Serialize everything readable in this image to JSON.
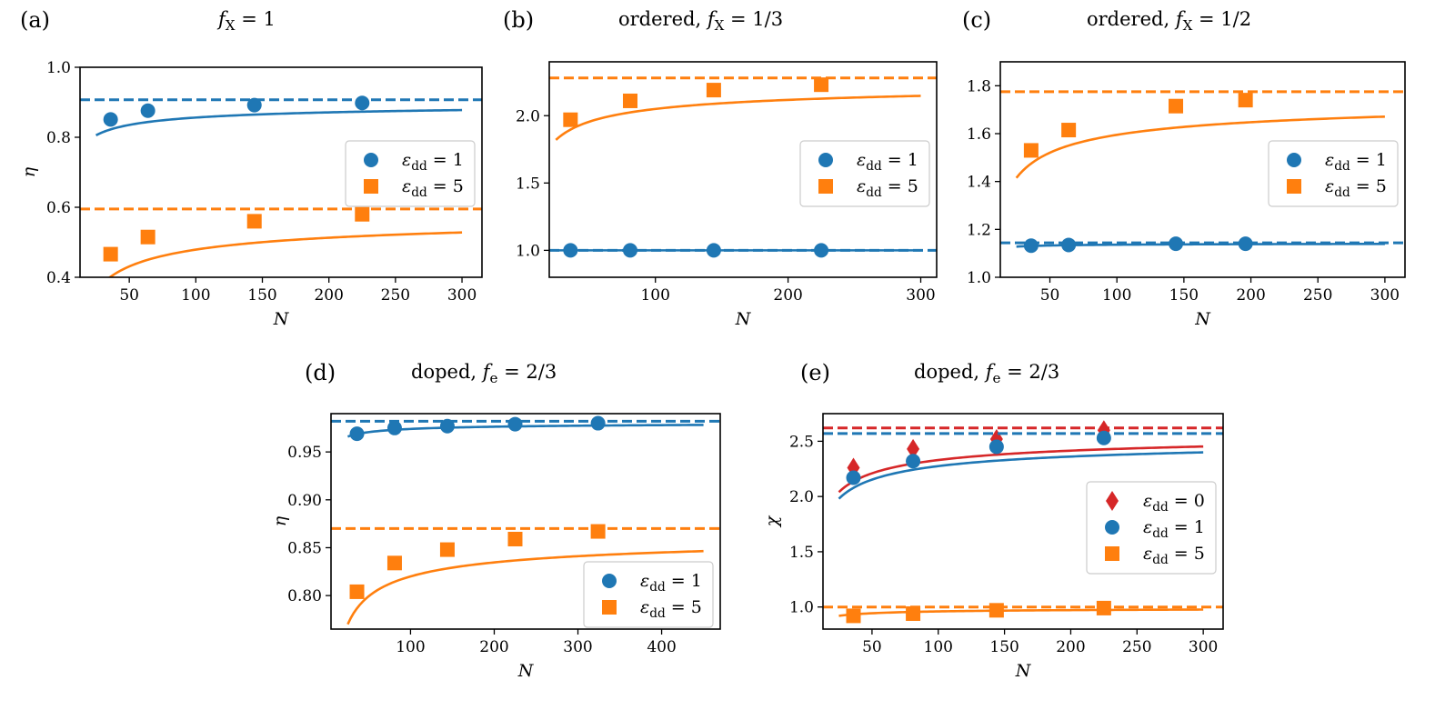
{
  "colors": {
    "blue": "#1f77b4",
    "orange": "#ff7f0e",
    "red": "#d62728"
  },
  "chart_data": [
    {
      "id": "a",
      "type": "line",
      "panel_label": "(a)",
      "title": "f_X = 1",
      "title_parts": [
        [
          "f",
          "i"
        ],
        [
          "X",
          "sub"
        ],
        [
          " = 1",
          "n"
        ]
      ],
      "xlabel": "N",
      "ylabel": "η",
      "xlim": [
        13,
        315
      ],
      "ylim": [
        0.4,
        1.0
      ],
      "xticks": [
        50,
        100,
        150,
        200,
        250,
        300
      ],
      "yticks": [
        0.4,
        0.6,
        0.8,
        1.0
      ],
      "ytick_labels": [
        "0.4",
        "0.6",
        "0.8",
        "1.0"
      ],
      "legend_pos": "center-right",
      "series": [
        {
          "legend": "ε_dd = 1",
          "legend_parts": [
            [
              "ε",
              "i"
            ],
            [
              "dd",
              "sub"
            ],
            [
              " = 1",
              "n"
            ]
          ],
          "color": "blue",
          "marker": "circle",
          "x": [
            36,
            64,
            144,
            225
          ],
          "y": [
            0.851,
            0.876,
            0.892,
            0.898
          ],
          "asymptote": 0.907,
          "fit_x0": 25,
          "fit_x1": 300,
          "fit_A": 0.507
        },
        {
          "legend": "ε_dd = 5",
          "legend_parts": [
            [
              "ε",
              "i"
            ],
            [
              "dd",
              "sub"
            ],
            [
              " = 5",
              "n"
            ]
          ],
          "color": "orange",
          "marker": "square",
          "x": [
            36,
            64,
            144,
            225
          ],
          "y": [
            0.466,
            0.515,
            0.56,
            0.58
          ],
          "asymptote": 0.595,
          "fit_x0": 25,
          "fit_x1": 300,
          "fit_A": 1.16
        }
      ]
    },
    {
      "id": "b",
      "type": "line",
      "panel_label": "(b)",
      "title": "ordered, f_X = 1/3",
      "title_parts": [
        [
          "ordered, ",
          "n"
        ],
        [
          "f",
          "i"
        ],
        [
          "X",
          "sub"
        ],
        [
          " = 1/3",
          "n"
        ]
      ],
      "xlabel": "N",
      "ylabel": "",
      "xlim": [
        20,
        312
      ],
      "ylim": [
        0.8,
        2.4
      ],
      "xticks": [
        100,
        200,
        300
      ],
      "yticks": [
        1.0,
        1.5,
        2.0
      ],
      "ytick_labels": [
        "1.0",
        "1.5",
        "2.0"
      ],
      "legend_pos": "center-right",
      "series": [
        {
          "legend": "ε_dd = 1",
          "legend_parts": [
            [
              "ε",
              "i"
            ],
            [
              "dd",
              "sub"
            ],
            [
              " = 1",
              "n"
            ]
          ],
          "color": "blue",
          "marker": "circle",
          "x": [
            36,
            81,
            144,
            225
          ],
          "y": [
            1.0,
            1.0,
            1.0,
            1.0
          ],
          "asymptote": 1.0,
          "fit_x0": 25,
          "fit_x1": 300,
          "fit_A": 0
        },
        {
          "legend": "ε_dd = 5",
          "legend_parts": [
            [
              "ε",
              "i"
            ],
            [
              "dd",
              "sub"
            ],
            [
              " = 5",
              "n"
            ]
          ],
          "color": "orange",
          "marker": "square",
          "x": [
            36,
            81,
            144,
            225
          ],
          "y": [
            1.97,
            2.11,
            2.19,
            2.23
          ],
          "asymptote": 2.28,
          "fit_x0": 25,
          "fit_x1": 300,
          "fit_A": 2.3
        }
      ]
    },
    {
      "id": "c",
      "type": "line",
      "panel_label": "(c)",
      "title": "ordered, f_X = 1/2",
      "title_parts": [
        [
          "ordered, ",
          "n"
        ],
        [
          "f",
          "i"
        ],
        [
          "X",
          "sub"
        ],
        [
          " = 1/2",
          "n"
        ]
      ],
      "xlabel": "N",
      "ylabel": "",
      "xlim": [
        13,
        315
      ],
      "ylim": [
        1.0,
        1.9
      ],
      "xticks": [
        50,
        100,
        150,
        200,
        250,
        300
      ],
      "yticks": [
        1.0,
        1.2,
        1.4,
        1.6,
        1.8
      ],
      "ytick_labels": [
        "1.0",
        "1.2",
        "1.4",
        "1.6",
        "1.8"
      ],
      "legend_pos": "center-right",
      "series": [
        {
          "legend": "ε_dd = 1",
          "legend_parts": [
            [
              "ε",
              "i"
            ],
            [
              "dd",
              "sub"
            ],
            [
              " = 1",
              "n"
            ]
          ],
          "color": "blue",
          "marker": "circle",
          "x": [
            36,
            64,
            144,
            196
          ],
          "y": [
            1.132,
            1.135,
            1.14,
            1.14
          ],
          "asymptote": 1.144,
          "fit_x0": 25,
          "fit_x1": 300,
          "fit_A": 0.08
        },
        {
          "legend": "ε_dd = 5",
          "legend_parts": [
            [
              "ε",
              "i"
            ],
            [
              "dd",
              "sub"
            ],
            [
              " = 5",
              "n"
            ]
          ],
          "color": "orange",
          "marker": "square",
          "x": [
            36,
            64,
            144,
            196
          ],
          "y": [
            1.53,
            1.615,
            1.715,
            1.74
          ],
          "asymptote": 1.775,
          "fit_x0": 25,
          "fit_x1": 300,
          "fit_A": 1.8
        }
      ]
    },
    {
      "id": "d",
      "type": "line",
      "panel_label": "(d)",
      "title": "doped, f_e = 2/3",
      "title_parts": [
        [
          "doped, ",
          "n"
        ],
        [
          "f",
          "i"
        ],
        [
          "e",
          "sub"
        ],
        [
          " = 2/3",
          "n"
        ]
      ],
      "xlabel": "N",
      "ylabel": "η",
      "xlim": [
        5,
        470
      ],
      "ylim": [
        0.765,
        0.99
      ],
      "xticks": [
        100,
        200,
        300,
        400
      ],
      "yticks": [
        0.8,
        0.85,
        0.9,
        0.95
      ],
      "ytick_labels": [
        "0.80",
        "0.85",
        "0.90",
        "0.95"
      ],
      "legend_pos": "bottom-right",
      "series": [
        {
          "legend": "ε_dd = 1",
          "legend_parts": [
            [
              "ε",
              "i"
            ],
            [
              "dd",
              "sub"
            ],
            [
              " = 1",
              "n"
            ]
          ],
          "color": "blue",
          "marker": "circle",
          "x": [
            36,
            81,
            144,
            225,
            324
          ],
          "y": [
            0.969,
            0.975,
            0.977,
            0.979,
            0.98
          ],
          "asymptote": 0.982,
          "fit_x0": 25,
          "fit_x1": 450,
          "fit_A": 0.08
        },
        {
          "legend": "ε_dd = 5",
          "legend_parts": [
            [
              "ε",
              "i"
            ],
            [
              "dd",
              "sub"
            ],
            [
              " = 5",
              "n"
            ]
          ],
          "color": "orange",
          "marker": "square",
          "x": [
            36,
            81,
            144,
            225,
            324
          ],
          "y": [
            0.804,
            0.834,
            0.848,
            0.859,
            0.867
          ],
          "asymptote": 0.87,
          "fit_x0": 25,
          "fit_x1": 450,
          "fit_A": 0.5
        }
      ]
    },
    {
      "id": "e",
      "type": "line",
      "panel_label": "(e)",
      "title": "doped, f_e = 2/3",
      "title_parts": [
        [
          "doped, ",
          "n"
        ],
        [
          "f",
          "i"
        ],
        [
          "e",
          "sub"
        ],
        [
          " = 2/3",
          "n"
        ]
      ],
      "xlabel": "N",
      "ylabel": "χ",
      "xlim": [
        13,
        315
      ],
      "ylim": [
        0.8,
        2.75
      ],
      "xticks": [
        50,
        100,
        150,
        200,
        250,
        300
      ],
      "yticks": [
        1.0,
        1.5,
        2.0,
        2.5
      ],
      "ytick_labels": [
        "1.0",
        "1.5",
        "2.0",
        "2.5"
      ],
      "legend_pos": "center-right",
      "series": [
        {
          "legend": "ε_dd = 0",
          "legend_parts": [
            [
              "ε",
              "i"
            ],
            [
              "dd",
              "sub"
            ],
            [
              " = 0",
              "n"
            ]
          ],
          "color": "red",
          "marker": "diamond",
          "x": [
            36,
            81,
            144,
            225
          ],
          "y": [
            2.26,
            2.43,
            2.52,
            2.6
          ],
          "asymptote": 2.62,
          "fit_x0": 25,
          "fit_x1": 300,
          "fit_A": 2.9
        },
        {
          "legend": "ε_dd = 1",
          "legend_parts": [
            [
              "ε",
              "i"
            ],
            [
              "dd",
              "sub"
            ],
            [
              " = 1",
              "n"
            ]
          ],
          "color": "blue",
          "marker": "circle",
          "x": [
            36,
            81,
            144,
            225
          ],
          "y": [
            2.17,
            2.32,
            2.45,
            2.53
          ],
          "asymptote": 2.57,
          "fit_x0": 25,
          "fit_x1": 300,
          "fit_A": 2.95
        },
        {
          "legend": "ε_dd = 5",
          "legend_parts": [
            [
              "ε",
              "i"
            ],
            [
              "dd",
              "sub"
            ],
            [
              " = 5",
              "n"
            ]
          ],
          "color": "orange",
          "marker": "square",
          "x": [
            36,
            81,
            144,
            225
          ],
          "y": [
            0.92,
            0.94,
            0.97,
            0.99
          ],
          "asymptote": 1.0,
          "fit_x0": 25,
          "fit_x1": 300,
          "fit_A": 0.4
        }
      ]
    }
  ]
}
